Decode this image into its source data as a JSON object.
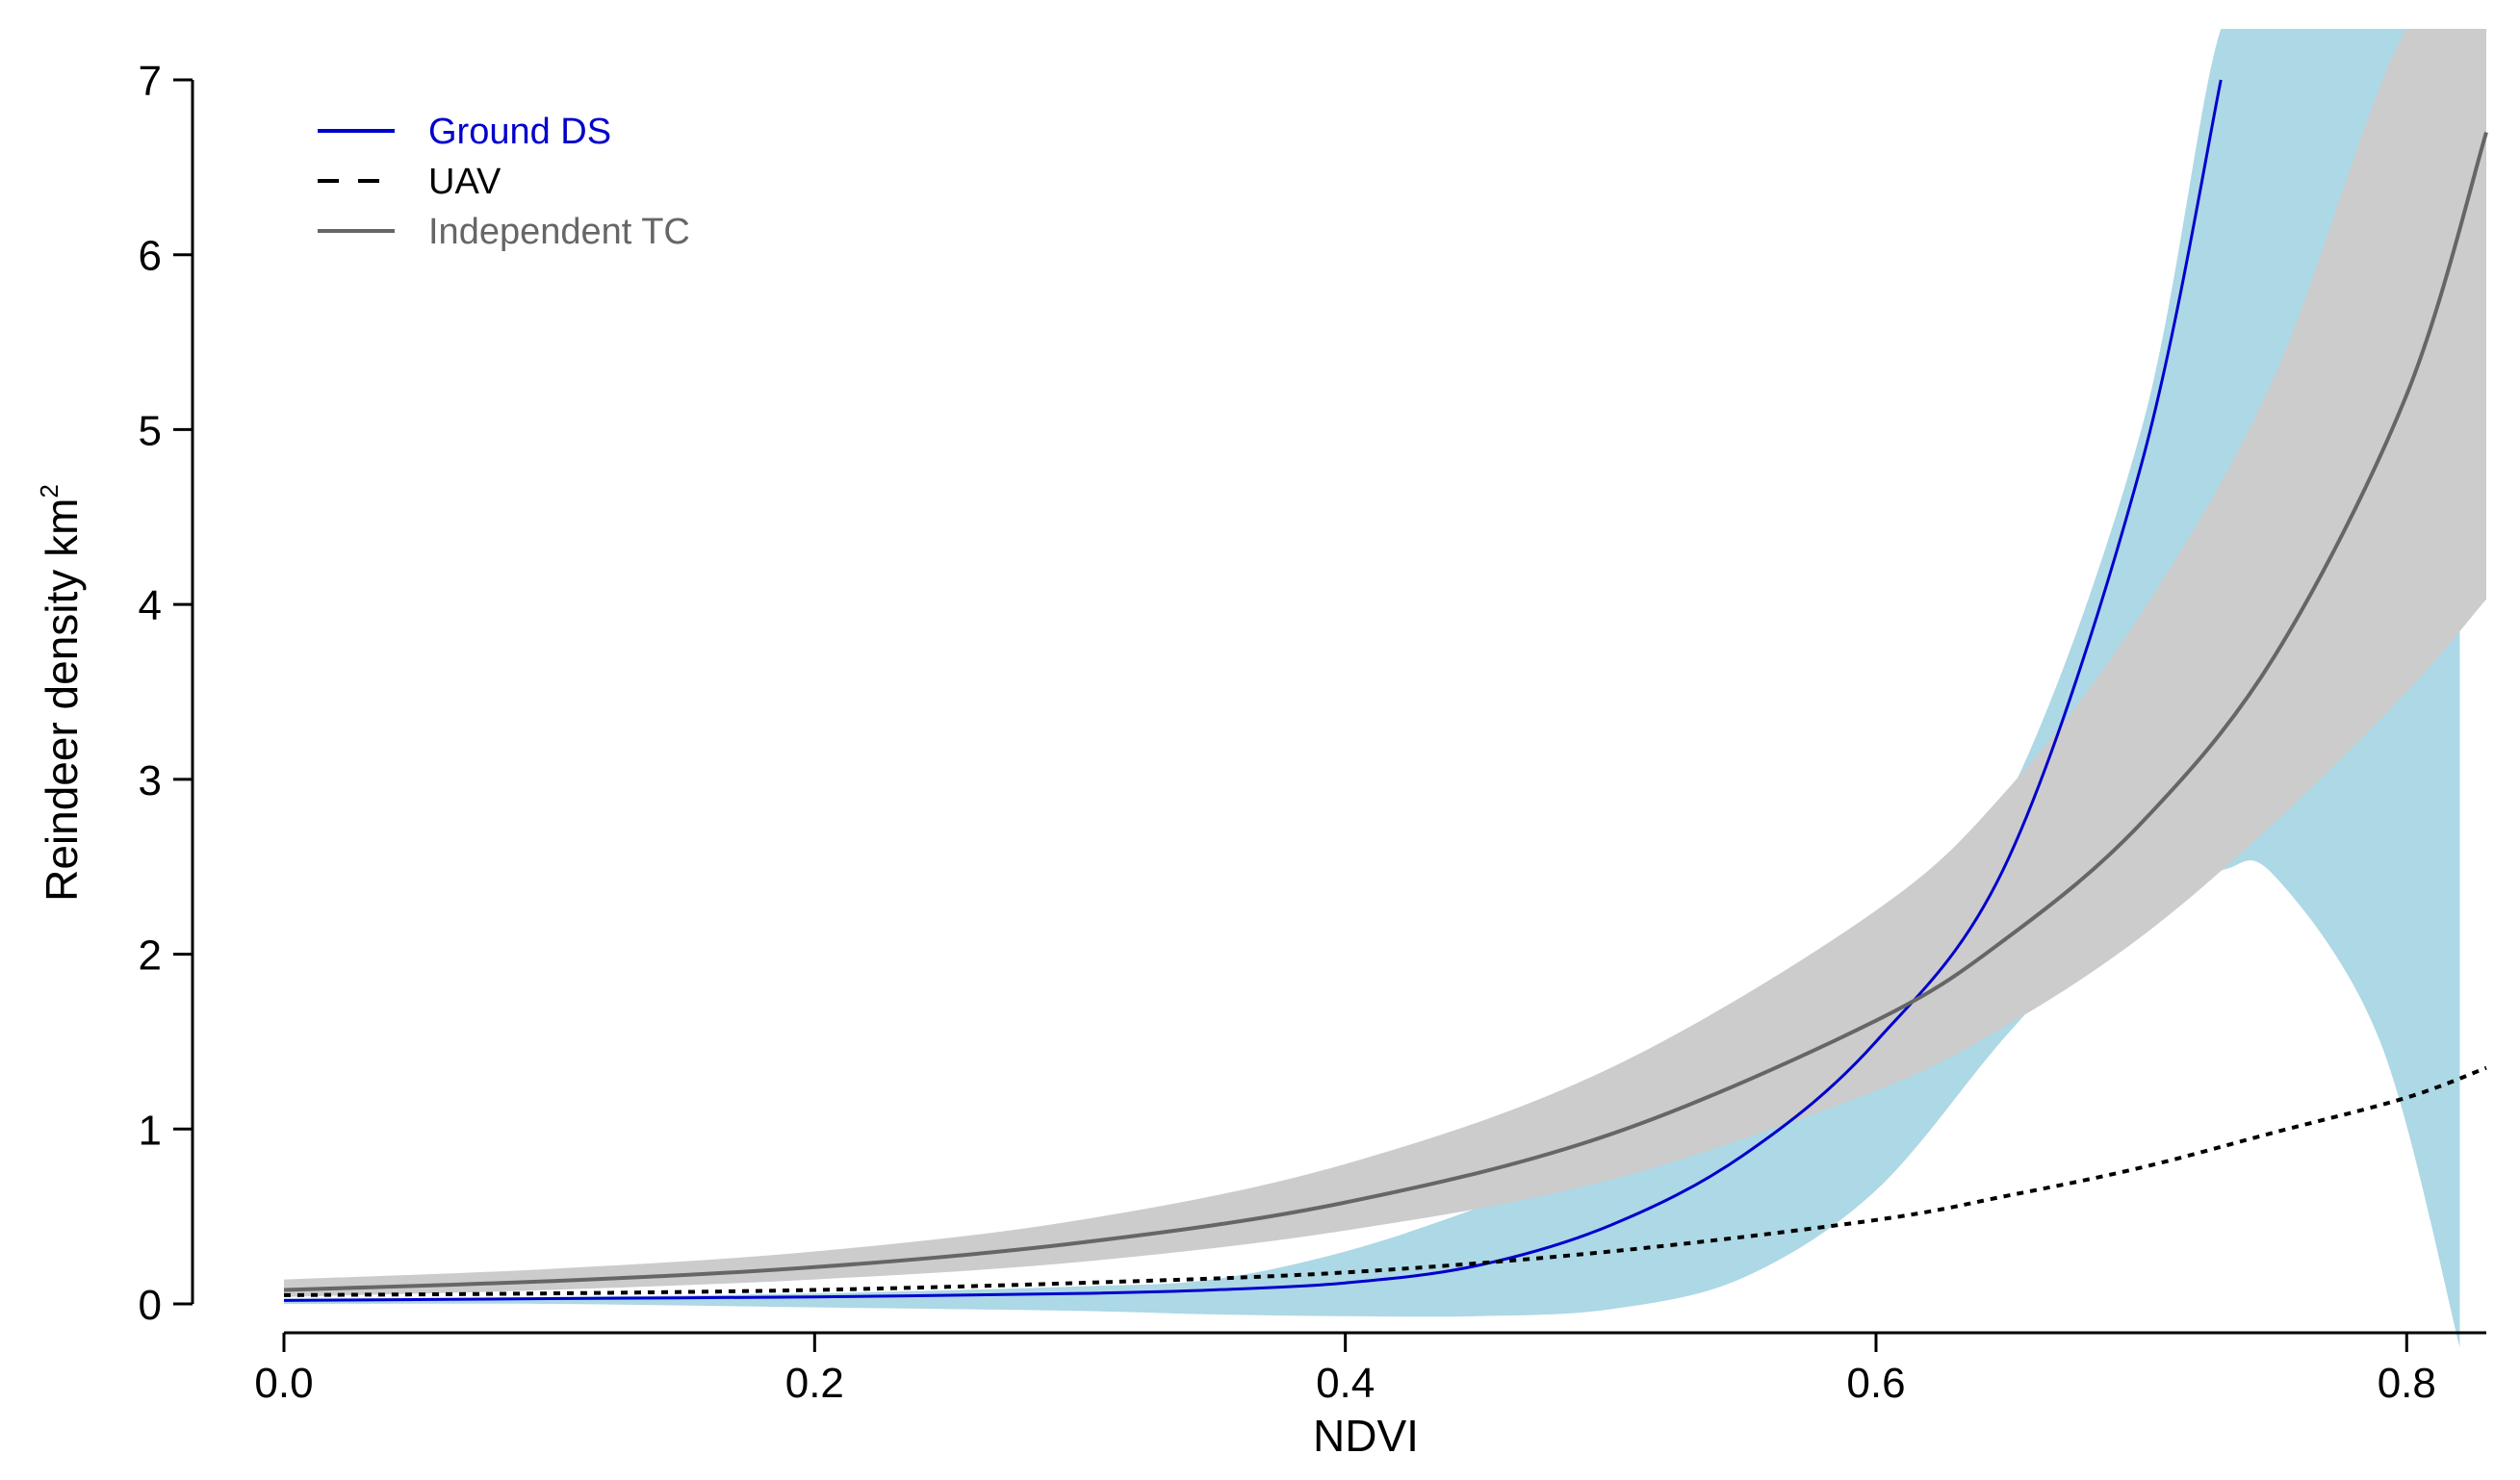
{
  "chart_data": {
    "type": "line",
    "xlabel": "NDVI",
    "ylabel": "Reindeer density  km",
    "ylabel_superscript": "2",
    "xlim": [
      0.0,
      0.83
    ],
    "ylim": [
      0,
      7
    ],
    "x_ticks": [
      "0.0",
      "0.2",
      "0.4",
      "0.6",
      "0.8"
    ],
    "x_tick_values": [
      0.0,
      0.2,
      0.4,
      0.6,
      0.8
    ],
    "y_ticks": [
      "0",
      "1",
      "2",
      "3",
      "4",
      "5",
      "6",
      "7"
    ],
    "y_tick_values": [
      0,
      1,
      2,
      3,
      4,
      5,
      6,
      7
    ],
    "legend_position": "top-left",
    "series": [
      {
        "name": "Ground DS",
        "color": "#0000cc",
        "style": "solid",
        "x": [
          0.0,
          0.1,
          0.2,
          0.3,
          0.35,
          0.4,
          0.45,
          0.5,
          0.55,
          0.6,
          0.65,
          0.7,
          0.73
        ],
        "y": [
          0.02,
          0.03,
          0.04,
          0.06,
          0.08,
          0.12,
          0.22,
          0.45,
          0.85,
          1.5,
          2.55,
          4.8,
          7.0
        ],
        "band_color": "#add8e6",
        "band_lower": [
          0.0,
          0.0,
          -0.02,
          -0.04,
          -0.06,
          -0.07,
          -0.07,
          -0.03,
          0.15,
          0.65,
          1.55,
          2.35,
          2.48,
          2.45,
          1.5,
          -0.3
        ],
        "band_upper": [
          0.03,
          0.04,
          0.06,
          0.1,
          0.14,
          0.3,
          0.55,
          0.85,
          1.3,
          1.9,
          2.9,
          5.0,
          7.3,
          7.3,
          7.3,
          7.3
        ],
        "band_x": [
          0.0,
          0.1,
          0.2,
          0.3,
          0.35,
          0.4,
          0.45,
          0.5,
          0.55,
          0.6,
          0.65,
          0.7,
          0.73,
          0.75,
          0.79,
          0.82
        ]
      },
      {
        "name": "UAV",
        "color": "#000000",
        "style": "dashed",
        "x": [
          0.0,
          0.1,
          0.2,
          0.3,
          0.4,
          0.5,
          0.6,
          0.65,
          0.7,
          0.75,
          0.8,
          0.83
        ],
        "y": [
          0.05,
          0.06,
          0.08,
          0.12,
          0.18,
          0.3,
          0.48,
          0.62,
          0.78,
          0.98,
          1.18,
          1.35
        ]
      },
      {
        "name": "Independent TC",
        "color": "#666666",
        "style": "solid",
        "x": [
          0.0,
          0.1,
          0.2,
          0.3,
          0.4,
          0.5,
          0.6,
          0.65,
          0.7,
          0.75,
          0.8,
          0.83
        ],
        "y": [
          0.08,
          0.13,
          0.21,
          0.35,
          0.58,
          0.97,
          1.62,
          2.1,
          2.75,
          3.7,
          5.2,
          6.7
        ],
        "band_color": "#cccccc",
        "band_lower": [
          0.04,
          0.08,
          0.14,
          0.24,
          0.42,
          0.71,
          1.22,
          1.6,
          2.1,
          2.75,
          3.5,
          4.03
        ],
        "band_upper": [
          0.14,
          0.2,
          0.3,
          0.48,
          0.8,
          1.35,
          2.25,
          2.95,
          3.95,
          5.3,
          7.3,
          7.3
        ],
        "band_x": [
          0.0,
          0.1,
          0.2,
          0.3,
          0.4,
          0.5,
          0.6,
          0.65,
          0.7,
          0.75,
          0.8,
          0.83
        ]
      }
    ],
    "annotations": []
  }
}
